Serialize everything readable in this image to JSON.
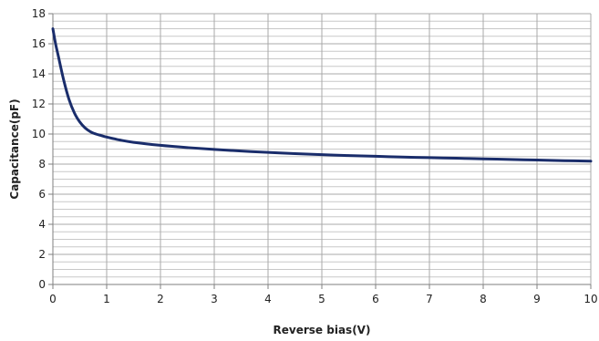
{
  "chart_data": {
    "type": "line",
    "title": "",
    "xlabel": "Reverse bias(V)",
    "ylabel": "Capacitance(pF)",
    "xlim": [
      0,
      10
    ],
    "ylim": [
      0,
      18
    ],
    "xticks": [
      "0",
      "1",
      "2",
      "3",
      "4",
      "5",
      "6",
      "7",
      "8",
      "9",
      "10"
    ],
    "yticks": [
      "0",
      "2",
      "4",
      "6",
      "8",
      "10",
      "12",
      "14",
      "16",
      "18"
    ],
    "grid": true,
    "legend": "none",
    "line_color": "#1a2d6b",
    "series": [
      {
        "x": [
          0,
          0.05,
          0.1,
          0.2,
          0.3,
          0.4,
          0.5,
          0.6,
          0.7,
          0.8,
          0.9,
          1.0,
          1.25,
          1.5,
          2,
          2.5,
          3,
          3.5,
          4,
          4.5,
          5,
          5.5,
          6,
          6.5,
          7,
          7.5,
          8,
          8.5,
          9,
          9.5,
          10
        ],
        "y": [
          17.0,
          16.0,
          15.2,
          13.6,
          12.3,
          11.4,
          10.8,
          10.4,
          10.15,
          10.0,
          9.9,
          9.8,
          9.6,
          9.45,
          9.25,
          9.1,
          8.98,
          8.87,
          8.78,
          8.7,
          8.63,
          8.57,
          8.52,
          8.47,
          8.43,
          8.39,
          8.35,
          8.31,
          8.27,
          8.23,
          8.2
        ]
      }
    ]
  }
}
